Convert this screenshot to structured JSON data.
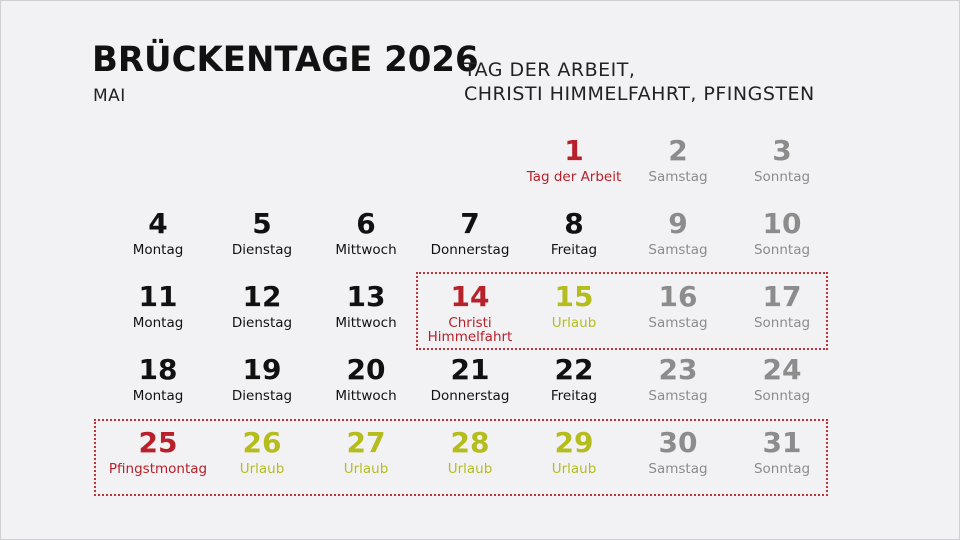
{
  "header": {
    "title": "BRÜCKENTAGE 2026",
    "month": "MAI",
    "subtitle_line1": "TAG DER ARBEIT,",
    "subtitle_line2": "CHRISTI HIMMELFAHRT, PFINGSTEN"
  },
  "colors": {
    "holiday": "#b8202a",
    "vacation": "#b5bd1e",
    "weekend": "#8c8c8c",
    "weekday": "#111111"
  },
  "calendar": {
    "rows": [
      [
        null,
        null,
        null,
        null,
        {
          "num": "1",
          "label": "Tag der Arbeit",
          "kind": "holiday"
        },
        {
          "num": "2",
          "label": "Samstag",
          "kind": "weekend"
        },
        {
          "num": "3",
          "label": "Sonntag",
          "kind": "weekend"
        }
      ],
      [
        {
          "num": "4",
          "label": "Montag",
          "kind": "weekday"
        },
        {
          "num": "5",
          "label": "Dienstag",
          "kind": "weekday"
        },
        {
          "num": "6",
          "label": "Mittwoch",
          "kind": "weekday"
        },
        {
          "num": "7",
          "label": "Donnerstag",
          "kind": "weekday"
        },
        {
          "num": "8",
          "label": "Freitag",
          "kind": "weekday"
        },
        {
          "num": "9",
          "label": "Samstag",
          "kind": "weekend"
        },
        {
          "num": "10",
          "label": "Sonntag",
          "kind": "weekend"
        }
      ],
      [
        {
          "num": "11",
          "label": "Montag",
          "kind": "weekday"
        },
        {
          "num": "12",
          "label": "Dienstag",
          "kind": "weekday"
        },
        {
          "num": "13",
          "label": "Mittwoch",
          "kind": "weekday"
        },
        {
          "num": "14",
          "label": "Christi Himmelfahrt",
          "kind": "holiday"
        },
        {
          "num": "15",
          "label": "Urlaub",
          "kind": "vacation"
        },
        {
          "num": "16",
          "label": "Samstag",
          "kind": "weekend"
        },
        {
          "num": "17",
          "label": "Sonntag",
          "kind": "weekend"
        }
      ],
      [
        {
          "num": "18",
          "label": "Montag",
          "kind": "weekday"
        },
        {
          "num": "19",
          "label": "Dienstag",
          "kind": "weekday"
        },
        {
          "num": "20",
          "label": "Mittwoch",
          "kind": "weekday"
        },
        {
          "num": "21",
          "label": "Donnerstag",
          "kind": "weekday"
        },
        {
          "num": "22",
          "label": "Freitag",
          "kind": "weekday"
        },
        {
          "num": "23",
          "label": "Samstag",
          "kind": "weekend"
        },
        {
          "num": "24",
          "label": "Sonntag",
          "kind": "weekend"
        }
      ],
      [
        {
          "num": "25",
          "label": "Pfingstmontag",
          "kind": "holiday"
        },
        {
          "num": "26",
          "label": "Urlaub",
          "kind": "vacation"
        },
        {
          "num": "27",
          "label": "Urlaub",
          "kind": "vacation"
        },
        {
          "num": "28",
          "label": "Urlaub",
          "kind": "vacation"
        },
        {
          "num": "29",
          "label": "Urlaub",
          "kind": "vacation"
        },
        {
          "num": "30",
          "label": "Samstag",
          "kind": "weekend"
        },
        {
          "num": "31",
          "label": "Sonntag",
          "kind": "weekend"
        }
      ]
    ]
  }
}
